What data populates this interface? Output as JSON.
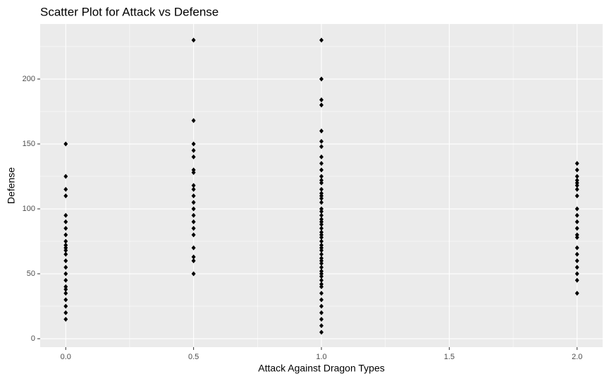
{
  "chart_data": {
    "type": "scatter",
    "title": "Scatter Plot for  Attack vs Defense",
    "x_label": "Attack Against Dragon Types",
    "y_label": "Defense",
    "x": [
      0,
      0,
      0,
      0,
      0,
      0,
      0,
      0,
      0,
      0,
      0,
      0,
      0,
      0,
      0,
      0,
      0,
      0,
      0,
      0,
      0,
      0,
      0,
      0,
      0.5,
      0.5,
      0.5,
      0.5,
      0.5,
      0.5,
      0.5,
      0.5,
      0.5,
      0.5,
      0.5,
      0.5,
      0.5,
      0.5,
      0.5,
      0.5,
      0.5,
      0.5,
      0.5,
      0.5,
      1,
      1,
      1,
      1,
      1,
      1,
      1,
      1,
      1,
      1,
      1,
      1,
      1,
      1,
      1,
      1,
      1,
      1,
      1,
      1,
      1,
      1,
      1,
      1,
      1,
      1,
      1,
      1,
      1,
      1,
      1,
      1,
      1,
      1,
      1,
      1,
      1,
      1,
      1,
      1,
      1,
      1,
      1,
      1,
      1,
      1,
      1,
      1,
      1,
      1,
      2,
      2,
      2,
      2,
      2,
      2,
      2,
      2,
      2,
      2,
      2,
      2,
      2,
      2,
      2,
      2,
      2,
      2,
      2,
      2,
      2
    ],
    "y": [
      150,
      125,
      115,
      110,
      95,
      90,
      85,
      80,
      75,
      72,
      70,
      68,
      65,
      60,
      55,
      50,
      45,
      40,
      38,
      35,
      30,
      25,
      20,
      15,
      230,
      168,
      150,
      145,
      140,
      130,
      128,
      118,
      115,
      110,
      105,
      100,
      95,
      90,
      85,
      80,
      70,
      63,
      60,
      50,
      230,
      200,
      184,
      180,
      160,
      152,
      148,
      140,
      135,
      130,
      125,
      122,
      120,
      115,
      112,
      110,
      108,
      105,
      100,
      98,
      95,
      92,
      90,
      88,
      85,
      82,
      80,
      78,
      75,
      72,
      70,
      68,
      65,
      62,
      60,
      58,
      55,
      52,
      50,
      48,
      45,
      42,
      40,
      35,
      30,
      25,
      20,
      15,
      10,
      5,
      135,
      130,
      125,
      122,
      120,
      118,
      115,
      110,
      100,
      95,
      90,
      85,
      80,
      78,
      70,
      65,
      60,
      55,
      50,
      45,
      35
    ],
    "color": "#000000",
    "xlim": [
      -0.1,
      2.1
    ],
    "ylim": [
      -6.5,
      242.4
    ],
    "xticks": [
      {
        "value": 0,
        "label": "0.0"
      },
      {
        "value": 0.5,
        "label": "0.5"
      },
      {
        "value": 1,
        "label": "1.0"
      },
      {
        "value": 1.5,
        "label": "1.5"
      },
      {
        "value": 2,
        "label": "2.0"
      }
    ],
    "yticks": [
      0,
      50,
      100,
      150,
      200
    ],
    "x_minor_ticks": [
      0.25,
      0.75,
      1.25,
      1.75
    ],
    "y_minor_ticks": [
      25,
      75,
      125,
      175,
      225
    ],
    "grid": true
  }
}
